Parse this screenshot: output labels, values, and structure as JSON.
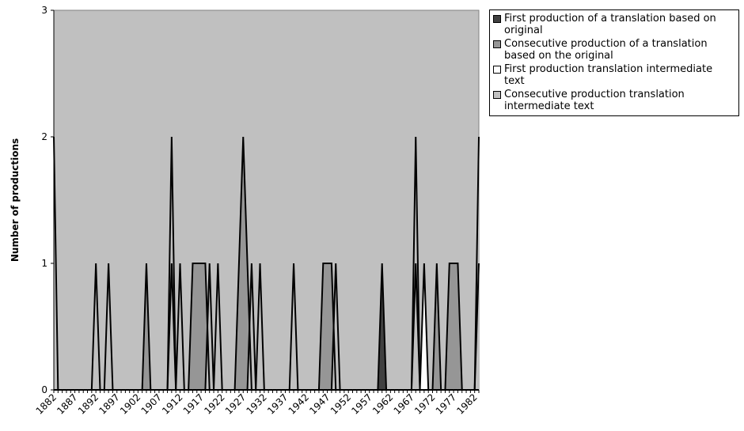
{
  "chart_data": {
    "type": "area",
    "title": "",
    "xlabel": "",
    "ylabel": "Number of productions",
    "ylim": [
      0,
      3
    ],
    "y_ticks": [
      "0",
      "1",
      "2",
      "3"
    ],
    "x_tick_labels": [
      "1882",
      "1887",
      "1892",
      "1897",
      "1902",
      "1907",
      "1912",
      "1917",
      "1922",
      "1927",
      "1932",
      "1937",
      "1942",
      "1947",
      "1952",
      "1957",
      "1962",
      "1967",
      "1972",
      "1977",
      "1982"
    ],
    "x": [
      1882,
      1883,
      1884,
      1885,
      1886,
      1887,
      1888,
      1889,
      1890,
      1891,
      1892,
      1893,
      1894,
      1895,
      1896,
      1897,
      1898,
      1899,
      1900,
      1901,
      1902,
      1903,
      1904,
      1905,
      1906,
      1907,
      1908,
      1909,
      1910,
      1911,
      1912,
      1913,
      1914,
      1915,
      1916,
      1917,
      1918,
      1919,
      1920,
      1921,
      1922,
      1923,
      1924,
      1925,
      1926,
      1927,
      1928,
      1929,
      1930,
      1931,
      1932,
      1933,
      1934,
      1935,
      1936,
      1937,
      1938,
      1939,
      1940,
      1941,
      1942,
      1943,
      1944,
      1945,
      1946,
      1947,
      1948,
      1949,
      1950,
      1951,
      1952,
      1953,
      1954,
      1955,
      1956,
      1957,
      1958,
      1959,
      1960,
      1961,
      1962,
      1963,
      1964,
      1965,
      1966,
      1967,
      1968,
      1969,
      1970,
      1971,
      1972,
      1973,
      1974,
      1975,
      1976,
      1977,
      1978,
      1979,
      1980,
      1981,
      1982,
      1983
    ],
    "grid": false,
    "plot_background": "#c0c0c0",
    "legend_position": "right",
    "series": [
      {
        "name": "First production of a translation based on original",
        "color": "#404040",
        "values": [
          0,
          0,
          0,
          0,
          0,
          0,
          0,
          0,
          0,
          0,
          0,
          0,
          0,
          0,
          0,
          0,
          0,
          0,
          0,
          0,
          0,
          0,
          0,
          0,
          0,
          0,
          0,
          0,
          1,
          0,
          0,
          0,
          0,
          0,
          0,
          0,
          0,
          0,
          0,
          0,
          0,
          0,
          0,
          0,
          0,
          0,
          0,
          0,
          0,
          0,
          0,
          0,
          0,
          0,
          0,
          0,
          0,
          0,
          0,
          0,
          0,
          0,
          0,
          0,
          0,
          0,
          0,
          0,
          0,
          0,
          0,
          0,
          0,
          0,
          0,
          0,
          0,
          0,
          1,
          0,
          0,
          0,
          0,
          0,
          0,
          0,
          0,
          0,
          0,
          0,
          0,
          0,
          0,
          0,
          0,
          0,
          0,
          0,
          0,
          0,
          0,
          0
        ]
      },
      {
        "name": "Consecutive production of a translation based on the original",
        "color": "#969696",
        "values": [
          0,
          0,
          0,
          0,
          0,
          0,
          0,
          0,
          0,
          0,
          0,
          0,
          0,
          0,
          0,
          0,
          0,
          0,
          0,
          0,
          0,
          0,
          1,
          0,
          0,
          0,
          0,
          0,
          0,
          0,
          0,
          0,
          0,
          1,
          1,
          1,
          1,
          0,
          0,
          0,
          0,
          0,
          0,
          0,
          1,
          2,
          1,
          0,
          0,
          0,
          0,
          0,
          0,
          0,
          0,
          0,
          0,
          0,
          0,
          0,
          0,
          0,
          0,
          0,
          1,
          1,
          1,
          0,
          0,
          0,
          0,
          0,
          0,
          0,
          0,
          0,
          0,
          0,
          0,
          0,
          0,
          0,
          0,
          0,
          0,
          0,
          0,
          0,
          0,
          0,
          0,
          1,
          0,
          0,
          1,
          1,
          1,
          0,
          0,
          0,
          0,
          0
        ]
      },
      {
        "name": "First production translation intermediate text",
        "color": "#ffffff",
        "values": [
          0,
          0,
          0,
          0,
          0,
          0,
          0,
          0,
          0,
          0,
          0,
          0,
          0,
          0,
          0,
          0,
          0,
          0,
          0,
          0,
          0,
          0,
          0,
          0,
          0,
          0,
          0,
          0,
          0,
          0,
          0,
          0,
          0,
          0,
          0,
          0,
          0,
          0,
          0,
          0,
          0,
          0,
          0,
          0,
          0,
          0,
          0,
          0,
          0,
          0,
          0,
          0,
          0,
          0,
          0,
          0,
          0,
          0,
          0,
          0,
          0,
          0,
          0,
          0,
          0,
          0,
          0,
          0,
          0,
          0,
          0,
          0,
          0,
          0,
          0,
          0,
          0,
          0,
          0,
          0,
          0,
          0,
          0,
          0,
          0,
          0,
          1,
          0,
          1,
          0,
          0,
          0,
          0,
          0,
          0,
          0,
          0,
          0,
          0,
          0,
          0,
          1
        ]
      },
      {
        "name": "Consecutive production translation intermediate text",
        "color": "#c0c0c0",
        "values": [
          2,
          0,
          0,
          0,
          0,
          0,
          0,
          0,
          0,
          0,
          1,
          0,
          0,
          1,
          0,
          0,
          0,
          0,
          0,
          0,
          0,
          0,
          0,
          0,
          0,
          0,
          0,
          0,
          2,
          0,
          1,
          0,
          0,
          0,
          0,
          0,
          0,
          1,
          0,
          1,
          0,
          0,
          0,
          0,
          0,
          0,
          0,
          1,
          0,
          1,
          0,
          0,
          0,
          0,
          0,
          0,
          0,
          1,
          0,
          0,
          0,
          0,
          0,
          0,
          0,
          0,
          0,
          1,
          0,
          0,
          0,
          0,
          0,
          0,
          0,
          0,
          0,
          0,
          0,
          0,
          0,
          0,
          0,
          0,
          0,
          0,
          2,
          0,
          0,
          0,
          0,
          0,
          0,
          0,
          0,
          0,
          0,
          0,
          0,
          0,
          0,
          2
        ]
      }
    ]
  }
}
